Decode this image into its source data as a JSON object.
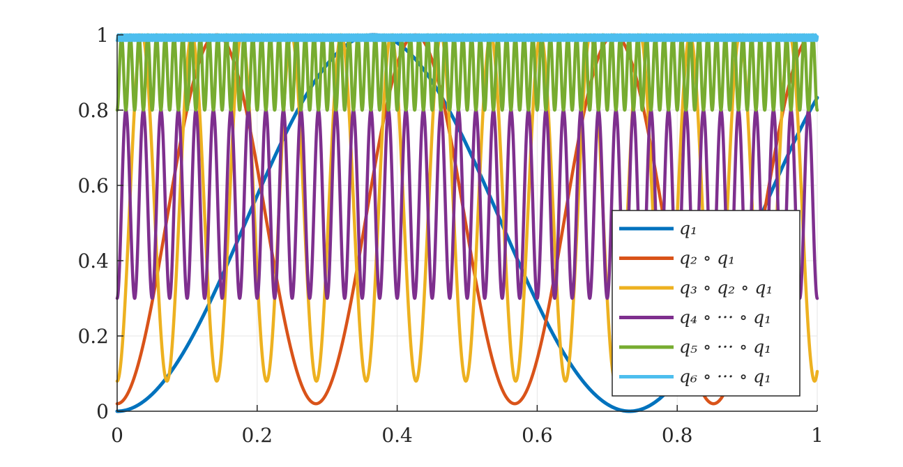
{
  "chart_data": {
    "type": "line",
    "title": "",
    "xlabel": "",
    "ylabel": "",
    "xlim": [
      0,
      1
    ],
    "ylim": [
      0,
      1
    ],
    "grid": true,
    "legend_position": "bottom-right",
    "xticks": [
      0,
      0.2,
      0.4,
      0.6,
      0.8,
      1
    ],
    "xtick_labels": [
      "0",
      "0.2",
      "0.4",
      "0.6",
      "0.8",
      "1"
    ],
    "yticks": [
      0,
      0.2,
      0.4,
      0.6,
      0.8,
      1
    ],
    "ytick_labels": [
      "0",
      "0.2",
      "0.4",
      "0.6",
      "0.8",
      "1"
    ],
    "series": [
      {
        "name": "q1",
        "legend_label": "q₁",
        "color": "#0072BD",
        "function": "sin^2",
        "a": 0.0,
        "b": 1.0,
        "omega": 4.2915,
        "x_range": [
          0,
          1
        ],
        "y_range": [
          0,
          1
        ]
      },
      {
        "name": "q2 ∘ q1",
        "legend_label": "q₂ ∘ q₁",
        "color": "#D95319",
        "function": "sin^2",
        "a": 0.02,
        "b": 0.98,
        "omega": 11.064,
        "x_range": [
          0,
          0.99
        ],
        "y_range": [
          0.02,
          1
        ]
      },
      {
        "name": "q3 ∘ q2 ∘ q1",
        "legend_label": "q₃ ∘ q₂ ∘ q₁",
        "color": "#EDB120",
        "function": "sin^2",
        "a": 0.08,
        "b": 0.92,
        "omega": 44.15,
        "x_range": [
          0,
          1
        ],
        "y_range": [
          0.08,
          1
        ]
      },
      {
        "name": "q4 ∘ ··· ∘ q1",
        "legend_label": "q₄ ∘ ··· ∘ q₁",
        "color": "#7E2F8E",
        "function": "sin^2",
        "a": 0.3,
        "b": 0.5,
        "omega": 125.66,
        "x_range": [
          0,
          1
        ],
        "y_range": [
          0.3,
          0.8
        ]
      },
      {
        "name": "q5 ∘ ··· ∘ q1",
        "legend_label": "q₅ ∘ ··· ∘ q₁",
        "color": "#77AC30",
        "function": "sin^2",
        "a": 0.8,
        "b": 0.2,
        "omega": 251.33,
        "x_range": [
          0,
          1
        ],
        "y_range": [
          0.8,
          1
        ]
      },
      {
        "name": "q6 ∘ ··· ∘ q1",
        "legend_label": "q₆ ∘ ··· ∘ q₁",
        "color": "#4DBEEE",
        "function": "sin^2",
        "a": 0.985,
        "b": 0.015,
        "omega": 1000,
        "x_range": [
          0,
          1
        ],
        "y_range": [
          0.985,
          1
        ]
      }
    ]
  },
  "colors": {
    "axis": "#262626",
    "grid": "#e6e6e6",
    "background": "#ffffff",
    "legend_border": "#262626"
  }
}
